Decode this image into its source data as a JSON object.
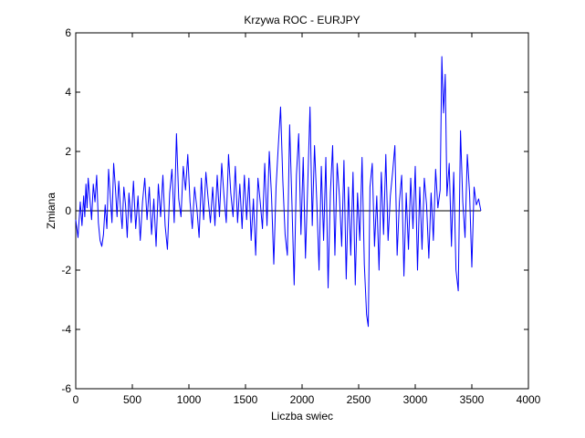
{
  "chart_data": {
    "type": "line",
    "title": "Krzywa ROC - EURJPY",
    "xlabel": "Liczba swiec",
    "ylabel": "Zmiana",
    "xlim": [
      0,
      4000
    ],
    "ylim": [
      -6,
      6
    ],
    "xticks": [
      0,
      500,
      1000,
      1500,
      2000,
      2500,
      3000,
      3500,
      4000
    ],
    "yticks": [
      -6,
      -4,
      -2,
      0,
      2,
      4,
      6
    ],
    "grid": false,
    "zero_line": true,
    "series": [
      {
        "color": "#0000ff",
        "x": [
          0,
          20,
          40,
          55,
          70,
          80,
          90,
          100,
          110,
          125,
          140,
          155,
          170,
          185,
          200,
          215,
          230,
          245,
          260,
          275,
          290,
          305,
          320,
          335,
          350,
          365,
          380,
          395,
          410,
          425,
          440,
          455,
          470,
          490,
          510,
          530,
          550,
          570,
          590,
          610,
          630,
          650,
          670,
          690,
          710,
          730,
          750,
          770,
          790,
          810,
          830,
          850,
          870,
          890,
          910,
          930,
          950,
          970,
          990,
          1010,
          1030,
          1050,
          1070,
          1090,
          1110,
          1130,
          1150,
          1170,
          1190,
          1210,
          1230,
          1250,
          1270,
          1290,
          1310,
          1330,
          1350,
          1370,
          1390,
          1410,
          1430,
          1450,
          1470,
          1490,
          1510,
          1530,
          1550,
          1570,
          1590,
          1610,
          1630,
          1650,
          1670,
          1690,
          1710,
          1730,
          1750,
          1770,
          1790,
          1810,
          1830,
          1850,
          1870,
          1890,
          1910,
          1930,
          1950,
          1970,
          1990,
          2010,
          2030,
          2050,
          2070,
          2090,
          2110,
          2130,
          2150,
          2170,
          2190,
          2210,
          2230,
          2250,
          2270,
          2290,
          2310,
          2330,
          2350,
          2370,
          2390,
          2410,
          2430,
          2450,
          2470,
          2490,
          2510,
          2530,
          2550,
          2570,
          2585,
          2600,
          2620,
          2640,
          2660,
          2680,
          2700,
          2720,
          2740,
          2760,
          2780,
          2800,
          2820,
          2840,
          2860,
          2880,
          2900,
          2920,
          2940,
          2960,
          2980,
          3000,
          3020,
          3040,
          3060,
          3080,
          3100,
          3120,
          3140,
          3160,
          3180,
          3200,
          3220,
          3235,
          3250,
          3265,
          3280,
          3300,
          3320,
          3340,
          3360,
          3380,
          3400,
          3420,
          3440,
          3460,
          3480,
          3500,
          3520,
          3540,
          3560,
          3580
        ],
        "y": [
          -0.3,
          -0.9,
          0.3,
          -0.5,
          0.5,
          -0.2,
          0.9,
          0.1,
          1.1,
          0.4,
          -0.3,
          0.9,
          0.3,
          1.2,
          -0.4,
          -1.0,
          -1.2,
          -0.8,
          0.2,
          -0.6,
          1.4,
          0.5,
          -0.4,
          1.6,
          0.8,
          -0.2,
          1.0,
          0.1,
          -0.6,
          0.8,
          0.2,
          -0.9,
          0.6,
          -0.4,
          1.0,
          -0.6,
          0.5,
          -1.0,
          0.3,
          1.1,
          -0.3,
          0.8,
          -0.8,
          0.4,
          -1.2,
          0.9,
          -0.2,
          1.2,
          -0.5,
          -1.3,
          0.6,
          1.4,
          -0.4,
          2.6,
          0.4,
          -0.2,
          1.5,
          0.7,
          1.9,
          0.3,
          -0.6,
          0.8,
          0.1,
          -0.9,
          1.1,
          -0.3,
          1.3,
          0.4,
          -0.4,
          0.8,
          -0.5,
          1.2,
          -0.2,
          1.6,
          0.5,
          -0.4,
          1.9,
          0.6,
          -0.2,
          1.5,
          -0.4,
          0.9,
          -0.6,
          1.2,
          -0.3,
          1.1,
          -1.0,
          0.4,
          -1.5,
          1.1,
          0.3,
          -0.6,
          1.6,
          -0.5,
          2.0,
          0.5,
          -1.8,
          0.8,
          2.2,
          3.5,
          1.0,
          -0.8,
          -1.5,
          2.9,
          0.3,
          -2.5,
          1.2,
          2.6,
          -0.8,
          1.8,
          -1.6,
          0.9,
          3.5,
          -0.5,
          2.2,
          0.3,
          -2.0,
          1.5,
          -1.0,
          1.8,
          -2.6,
          0.6,
          2.2,
          -1.5,
          1.6,
          0.5,
          -1.2,
          1.7,
          -2.3,
          0.8,
          -1.5,
          1.3,
          -2.5,
          0.6,
          -1.0,
          1.8,
          -1.8,
          -3.5,
          -3.9,
          0.8,
          1.6,
          -1.2,
          0.5,
          -2.0,
          1.3,
          -0.8,
          1.9,
          -1.0,
          0.5,
          1.3,
          2.2,
          -1.5,
          0.3,
          1.2,
          -2.2,
          0.6,
          -1.3,
          1.1,
          -0.6,
          1.5,
          -2.0,
          0.8,
          -1.3,
          1.1,
          0.2,
          -1.6,
          0.6,
          -1.0,
          1.4,
          0.1,
          0.7,
          5.2,
          3.3,
          4.6,
          0.5,
          1.6,
          -1.2,
          1.3,
          -2.0,
          -2.7,
          2.7,
          0.3,
          -0.9,
          1.9,
          0.6,
          -1.9,
          0.8,
          0.2,
          0.4,
          0.0
        ]
      }
    ]
  }
}
